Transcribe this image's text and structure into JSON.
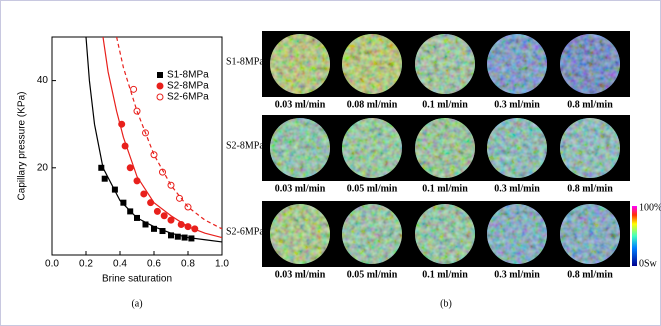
{
  "chart_data": {
    "type": "scatter",
    "xlabel": "Brine saturation",
    "ylabel": "Capillary pressure (KPa)",
    "caption": "(a)",
    "xlim": [
      0,
      1
    ],
    "xticks": [
      {
        "value": 0,
        "label": "0.0"
      },
      0.2,
      0.4,
      0.6,
      0.8,
      {
        "value": 1,
        "label": "1.0"
      }
    ],
    "ylim": [
      0,
      50
    ],
    "yticks": [
      20,
      40
    ],
    "legend": "upper right",
    "series": [
      {
        "name": "S1-8MPa",
        "color": "#000000",
        "marker": "square",
        "dash": false,
        "x": [
          0.29,
          0.31,
          0.37,
          0.42,
          0.46,
          0.5,
          0.55,
          0.6,
          0.65,
          0.7,
          0.74,
          0.78,
          0.82
        ],
        "values": [
          20,
          17.5,
          15,
          12,
          10,
          8.5,
          7,
          6,
          5.5,
          4.5,
          4.2,
          4,
          3.8
        ],
        "fit": {
          "x": [
            0.2,
            0.22,
            0.25,
            0.3,
            0.4,
            0.5,
            0.6,
            0.7,
            0.8,
            0.9,
            1.0
          ],
          "values": [
            50,
            40,
            30,
            20,
            12.5,
            8.5,
            6.5,
            5,
            4,
            3.5,
            3
          ]
        }
      },
      {
        "name": "S2-8MPa",
        "color": "#e8201c",
        "marker": "circle",
        "dash": false,
        "x": [
          0.41,
          0.43,
          0.46,
          0.5,
          0.54,
          0.58,
          0.62,
          0.66,
          0.7,
          0.76,
          0.8,
          0.84
        ],
        "values": [
          30,
          25,
          20,
          17,
          14,
          12,
          10,
          9,
          8,
          7,
          6.5,
          6
        ],
        "fit": {
          "x": [
            0.3,
            0.33,
            0.38,
            0.42,
            0.5,
            0.6,
            0.7,
            0.8,
            0.9,
            1.0
          ],
          "values": [
            50,
            42,
            33,
            27,
            18,
            12,
            9,
            6.5,
            5,
            4
          ]
        }
      },
      {
        "name": "S2-6MPa",
        "color": "#e8201c",
        "marker": "open-circle",
        "dash": true,
        "x": [
          0.48,
          0.5,
          0.55,
          0.6,
          0.65,
          0.7,
          0.75,
          0.8
        ],
        "values": [
          38,
          33,
          28,
          23,
          19,
          16,
          13,
          11
        ],
        "fit": {
          "x": [
            0.38,
            0.42,
            0.5,
            0.6,
            0.7,
            0.8,
            0.9,
            1.0
          ],
          "values": [
            50,
            43,
            33,
            23,
            16,
            11,
            8,
            6
          ]
        }
      }
    ]
  },
  "panel_b": {
    "caption": "(b)",
    "colorbar": {
      "top": "100%Sw",
      "bottom": "0Sw"
    },
    "rows": [
      {
        "label": "S1-8MPa",
        "images": [
          {
            "label": "0.03 ml/min",
            "color": "#a6cf58"
          },
          {
            "label": "0.08 ml/min",
            "color": "#a8d050"
          },
          {
            "label": "0.1 ml/min",
            "color": "#80c89c"
          },
          {
            "label": "0.3 ml/min",
            "color": "#3f7fe0"
          },
          {
            "label": "0.8 ml/min",
            "color": "#2f5ed8"
          }
        ]
      },
      {
        "label": "S2-8MPa",
        "images": [
          {
            "label": "0.03 ml/min",
            "color": "#62c8a6"
          },
          {
            "label": "0.05 ml/min",
            "color": "#70d098"
          },
          {
            "label": "0.1 ml/min",
            "color": "#72c890"
          },
          {
            "label": "0.3 ml/min",
            "color": "#5ab8c0"
          },
          {
            "label": "0.8 ml/min",
            "color": "#60b8c8"
          }
        ]
      },
      {
        "label": "S2-6MPa",
        "images": [
          {
            "label": "0.03 ml/min",
            "color": "#90d070"
          },
          {
            "label": "0.05 ml/min",
            "color": "#72c8a0"
          },
          {
            "label": "0.1 ml/min",
            "color": "#6cc8a0"
          },
          {
            "label": "0.3 ml/min",
            "color": "#4aa0d8"
          },
          {
            "label": "0.8 ml/min",
            "color": "#4898d8"
          }
        ]
      }
    ]
  }
}
